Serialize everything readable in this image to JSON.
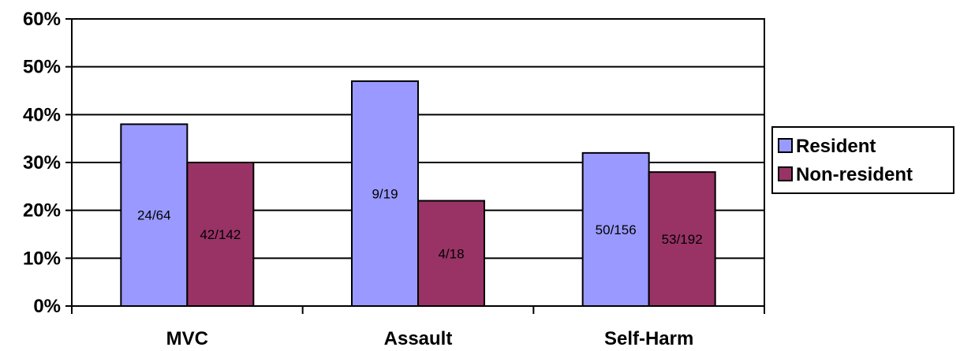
{
  "chart_data": {
    "type": "bar",
    "categories": [
      "MVC",
      "Assault",
      "Self-Harm"
    ],
    "series": [
      {
        "name": "Resident",
        "color": "#9999ff",
        "values": [
          0.38,
          0.47,
          0.32
        ],
        "labels": [
          "24/64",
          "9/19",
          "50/156"
        ]
      },
      {
        "name": "Non-resident",
        "color": "#993366",
        "values": [
          0.3,
          0.22,
          0.28
        ],
        "labels": [
          "42/142",
          "4/18",
          "53/192"
        ]
      }
    ],
    "ylim": [
      0,
      0.6
    ],
    "yticks": [
      0,
      0.1,
      0.2,
      0.3,
      0.4,
      0.5,
      0.6
    ],
    "ytick_labels": [
      "0%",
      "10%",
      "20%",
      "30%",
      "40%",
      "50%",
      "60%"
    ],
    "grid": true,
    "legend_position": "right"
  }
}
